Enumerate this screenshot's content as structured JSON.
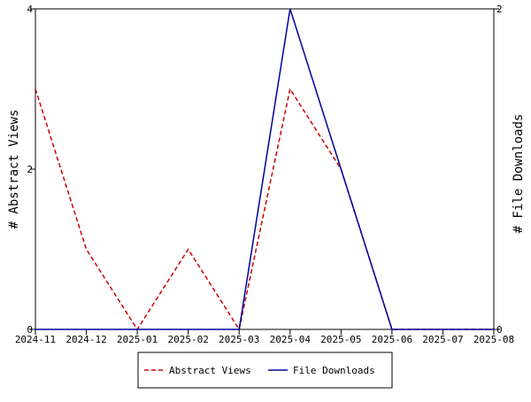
{
  "chart_data": {
    "type": "line",
    "categories": [
      "2024-11",
      "2024-12",
      "2025-01",
      "2025-02",
      "2025-03",
      "2025-04",
      "2025-05",
      "2025-06",
      "2025-07",
      "2025-08"
    ],
    "series": [
      {
        "name": "Abstract Views",
        "axis": "left",
        "color": "#cc0000",
        "dash": "dashed",
        "values": [
          3,
          1,
          0,
          1,
          0,
          3,
          2,
          0,
          0,
          0
        ]
      },
      {
        "name": "File Downloads",
        "axis": "right",
        "color": "#000099",
        "dash": "solid",
        "values": [
          0,
          0,
          0,
          0,
          0,
          2,
          1,
          0,
          0,
          0
        ]
      }
    ],
    "ylabel": "# Abstract Views",
    "y2label": "# File Downloads",
    "xlabel": "",
    "ylim": [
      0,
      4
    ],
    "y2lim": [
      0,
      2
    ],
    "yticks": [
      "0",
      "2",
      "4"
    ],
    "y2ticks": [
      "0",
      "2"
    ],
    "grid": false,
    "legend_position": "bottom"
  }
}
